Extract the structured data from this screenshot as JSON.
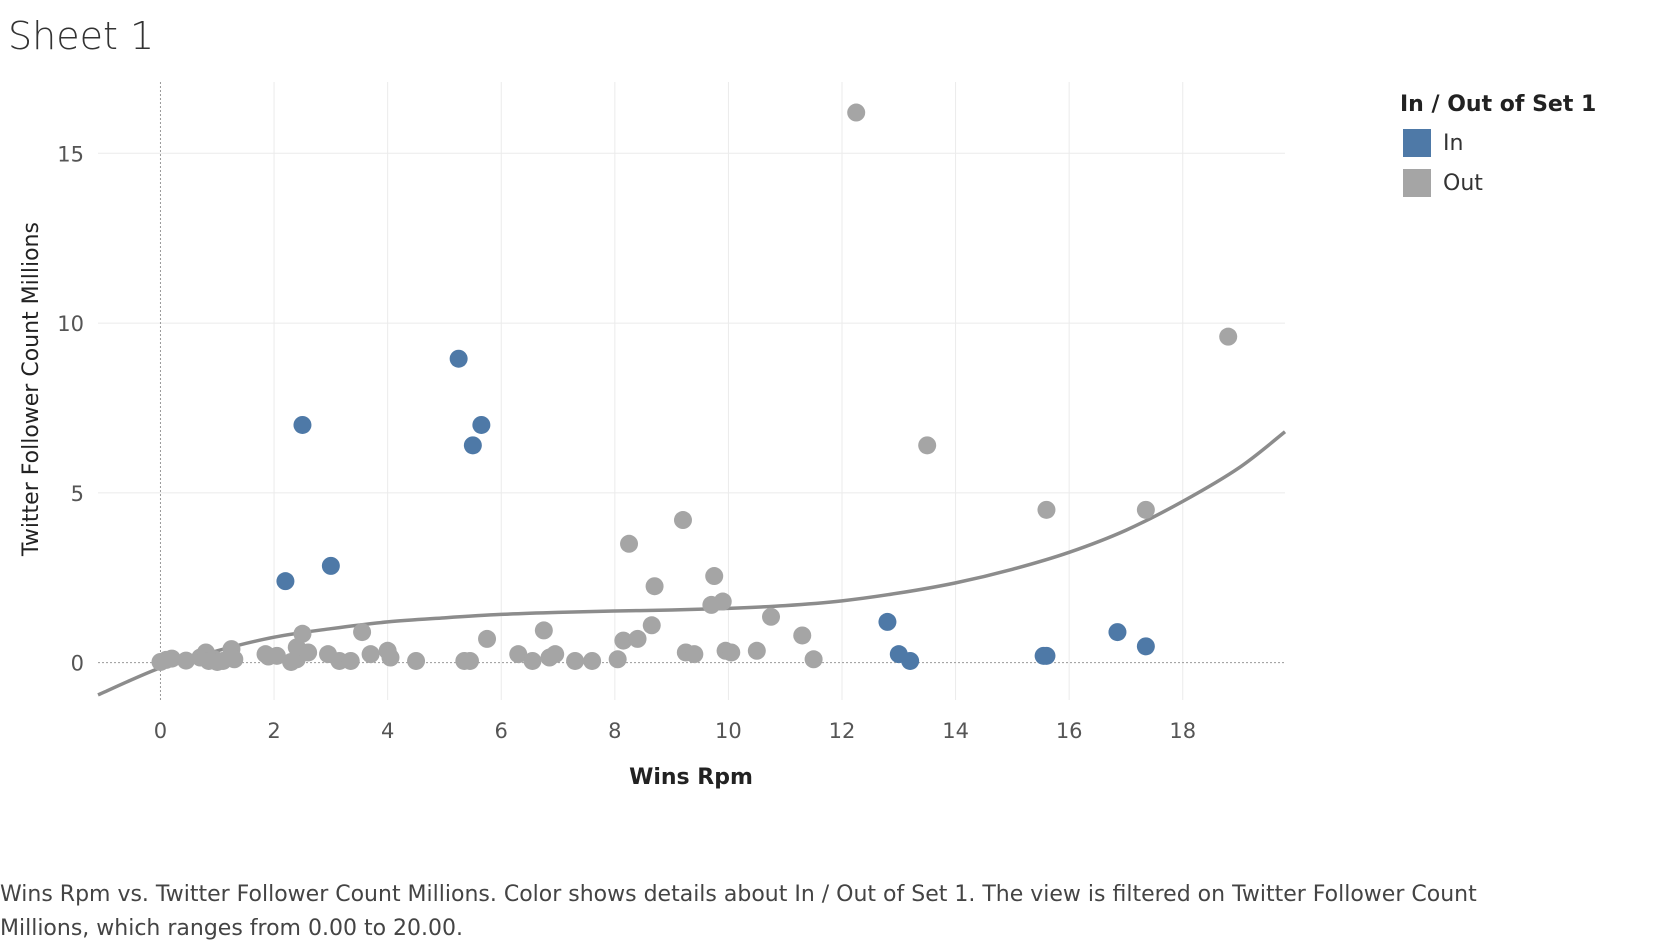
{
  "sheet": {
    "title": "Sheet 1"
  },
  "caption": "Wins Rpm vs. Twitter Follower Count Millions.  Color shows details about In / Out of Set 1. The view is filtered on Twitter Follower Count Millions, which ranges from 0.00 to 20.00.",
  "legend": {
    "title": "In / Out of Set 1",
    "items": [
      {
        "label": "In",
        "color": "#4e79a7"
      },
      {
        "label": "Out",
        "color": "#a5a5a5"
      }
    ]
  },
  "chart_data": {
    "type": "scatter",
    "title": "",
    "xlabel": "Wins Rpm",
    "ylabel": "Twitter Follower Count Millions",
    "xlim": [
      -1.1,
      19.8
    ],
    "ylim": [
      -1.1,
      17.1
    ],
    "xticks": [
      0,
      2,
      4,
      6,
      8,
      10,
      12,
      14,
      16,
      18
    ],
    "yticks": [
      0,
      5,
      10,
      15
    ],
    "grid": true,
    "legend_position": "top-right",
    "series": [
      {
        "name": "In",
        "color": "#4e79a7",
        "points": [
          [
            2.2,
            2.4
          ],
          [
            2.5,
            7.0
          ],
          [
            3.0,
            2.85
          ],
          [
            5.25,
            8.95
          ],
          [
            5.5,
            6.4
          ],
          [
            5.65,
            7.0
          ],
          [
            12.8,
            1.2
          ],
          [
            13.0,
            0.25
          ],
          [
            13.2,
            0.05
          ],
          [
            15.55,
            0.2
          ],
          [
            15.6,
            0.2
          ],
          [
            16.85,
            0.9
          ],
          [
            17.35,
            0.48
          ]
        ]
      },
      {
        "name": "Out",
        "color": "#a5a5a5",
        "points": [
          [
            0.0,
            0.02
          ],
          [
            0.1,
            0.08
          ],
          [
            0.2,
            0.12
          ],
          [
            0.45,
            0.06
          ],
          [
            0.7,
            0.15
          ],
          [
            0.8,
            0.3
          ],
          [
            0.85,
            0.05
          ],
          [
            0.95,
            0.1
          ],
          [
            1.0,
            0.02
          ],
          [
            1.1,
            0.05
          ],
          [
            1.25,
            0.4
          ],
          [
            1.3,
            0.1
          ],
          [
            1.85,
            0.25
          ],
          [
            1.9,
            0.18
          ],
          [
            2.05,
            0.2
          ],
          [
            2.3,
            0.02
          ],
          [
            2.4,
            0.1
          ],
          [
            2.4,
            0.45
          ],
          [
            2.5,
            0.85
          ],
          [
            2.6,
            0.3
          ],
          [
            2.95,
            0.25
          ],
          [
            3.15,
            0.05
          ],
          [
            3.35,
            0.05
          ],
          [
            3.55,
            0.9
          ],
          [
            3.7,
            0.25
          ],
          [
            4.0,
            0.35
          ],
          [
            4.05,
            0.15
          ],
          [
            4.5,
            0.05
          ],
          [
            5.35,
            0.05
          ],
          [
            5.45,
            0.05
          ],
          [
            5.75,
            0.7
          ],
          [
            6.3,
            0.25
          ],
          [
            6.55,
            0.05
          ],
          [
            6.75,
            0.95
          ],
          [
            6.85,
            0.15
          ],
          [
            6.95,
            0.25
          ],
          [
            7.3,
            0.05
          ],
          [
            7.6,
            0.05
          ],
          [
            8.05,
            0.1
          ],
          [
            8.15,
            0.65
          ],
          [
            8.25,
            3.5
          ],
          [
            8.4,
            0.7
          ],
          [
            8.65,
            1.1
          ],
          [
            8.7,
            2.25
          ],
          [
            9.2,
            4.2
          ],
          [
            9.25,
            0.3
          ],
          [
            9.4,
            0.25
          ],
          [
            9.7,
            1.7
          ],
          [
            9.75,
            2.55
          ],
          [
            9.9,
            1.8
          ],
          [
            9.95,
            0.35
          ],
          [
            10.05,
            0.3
          ],
          [
            10.5,
            0.35
          ],
          [
            10.75,
            1.35
          ],
          [
            11.3,
            0.8
          ],
          [
            11.5,
            0.1
          ],
          [
            12.25,
            16.2
          ],
          [
            13.5,
            6.4
          ],
          [
            15.6,
            4.5
          ],
          [
            17.35,
            4.5
          ],
          [
            18.8,
            9.6
          ]
        ]
      }
    ],
    "trend_line": {
      "color": "#8c8c8c",
      "points": [
        [
          -1.1,
          -0.95
        ],
        [
          0,
          -0.15
        ],
        [
          1,
          0.35
        ],
        [
          2,
          0.75
        ],
        [
          3,
          1.0
        ],
        [
          4,
          1.2
        ],
        [
          5,
          1.32
        ],
        [
          6,
          1.42
        ],
        [
          7,
          1.48
        ],
        [
          8,
          1.52
        ],
        [
          9,
          1.55
        ],
        [
          10,
          1.6
        ],
        [
          11,
          1.68
        ],
        [
          12,
          1.82
        ],
        [
          13,
          2.05
        ],
        [
          14,
          2.35
        ],
        [
          15,
          2.75
        ],
        [
          16,
          3.25
        ],
        [
          17,
          3.9
        ],
        [
          18,
          4.75
        ],
        [
          19,
          5.75
        ],
        [
          19.8,
          6.8
        ]
      ]
    }
  }
}
